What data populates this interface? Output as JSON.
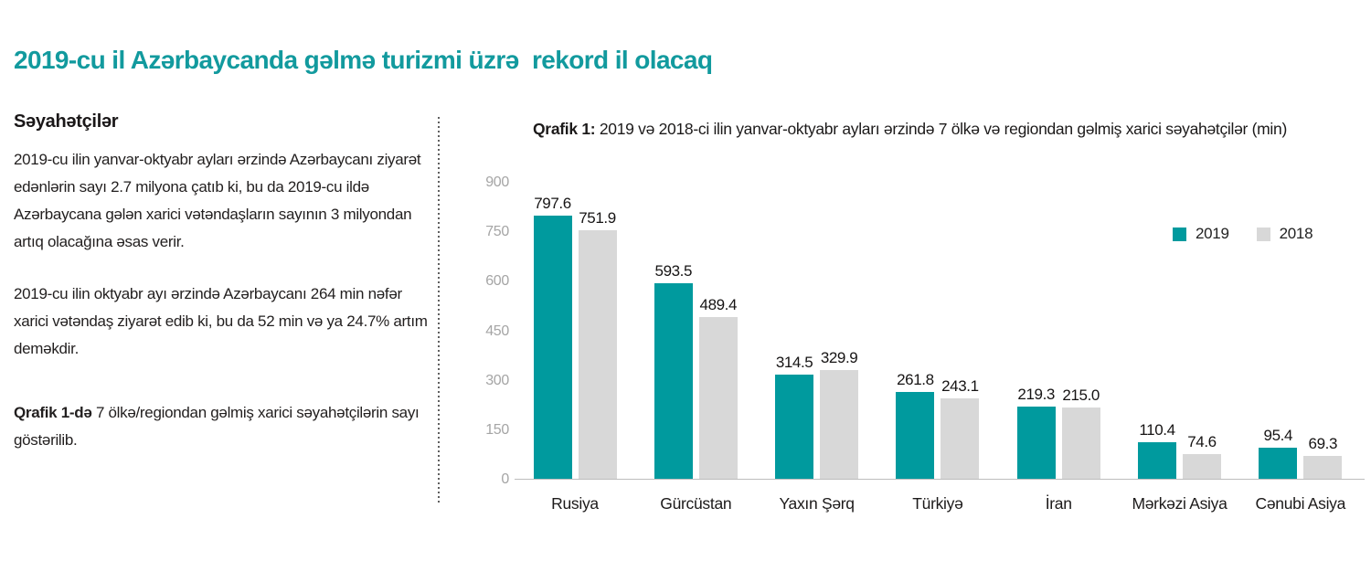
{
  "page": {
    "title": "2019-cu il Azərbaycanda gəlmə turizmi üzrə  rekord il olacaq"
  },
  "sidebar": {
    "heading": "Səyahətçilər",
    "paragraph1": "2019-cu ilin yanvar-oktyabr ayları ərzində Azərbaycanı ziyarət edənlərin sayı 2.7 milyona çatıb ki, bu da 2019-cu ildə Azərbaycana gələn xarici vətəndaşların sayının 3 milyondan artıq olacağına əsas verir.",
    "paragraph2": "2019-cu ilin oktyabr ayı ərzində Azərbaycanı 264 min nəfər xarici vətəndaş ziyarət edib ki, bu da 52 min və ya 24.7% artım deməkdir.",
    "paragraph3_lead": "Qrafik 1-də",
    "paragraph3_rest": " 7 ölkə/regiondan gəlmiş xarici səyahətçilərin sayı göstərilib."
  },
  "chart": {
    "title_lead": "Qrafik 1:",
    "title_rest": " 2019 və 2018-ci ilin yanvar-oktyabr ayları ərzində 7 ölkə və regiondan gəlmiş xarici səyahətçilər (min)"
  },
  "chart_data": {
    "type": "bar",
    "title": "Qrafik 1: 2019 və 2018-ci ilin yanvar-oktyabr ayları ərzində 7 ölkə və regiondan gəlmiş xarici səyahətçilər (min)",
    "categories": [
      "Rusiya",
      "Gürcüstan",
      "Yaxın Şərq",
      "Türkiyə",
      "İran",
      "Mərkəzi Asiya",
      "Cənubi Asiya"
    ],
    "series": [
      {
        "name": "2019",
        "color": "#009a9e",
        "values": [
          797.6,
          593.5,
          314.5,
          261.8,
          219.3,
          110.4,
          95.4
        ]
      },
      {
        "name": "2018",
        "color": "#d8d8d8",
        "values": [
          751.9,
          489.4,
          329.9,
          243.1,
          215.0,
          74.6,
          69.3
        ]
      }
    ],
    "yticks": [
      0,
      150,
      300,
      450,
      600,
      750,
      900
    ],
    "ylim": [
      0,
      900
    ],
    "xlabel": "",
    "ylabel": "",
    "grid": false,
    "legend_position": "right-top",
    "value_labels": true
  },
  "colors": {
    "accent": "#129a9e",
    "bar_2019": "#009a9e",
    "bar_2018": "#d8d8d8",
    "axis_label": "#a5a5a5",
    "text": "#231f20"
  }
}
